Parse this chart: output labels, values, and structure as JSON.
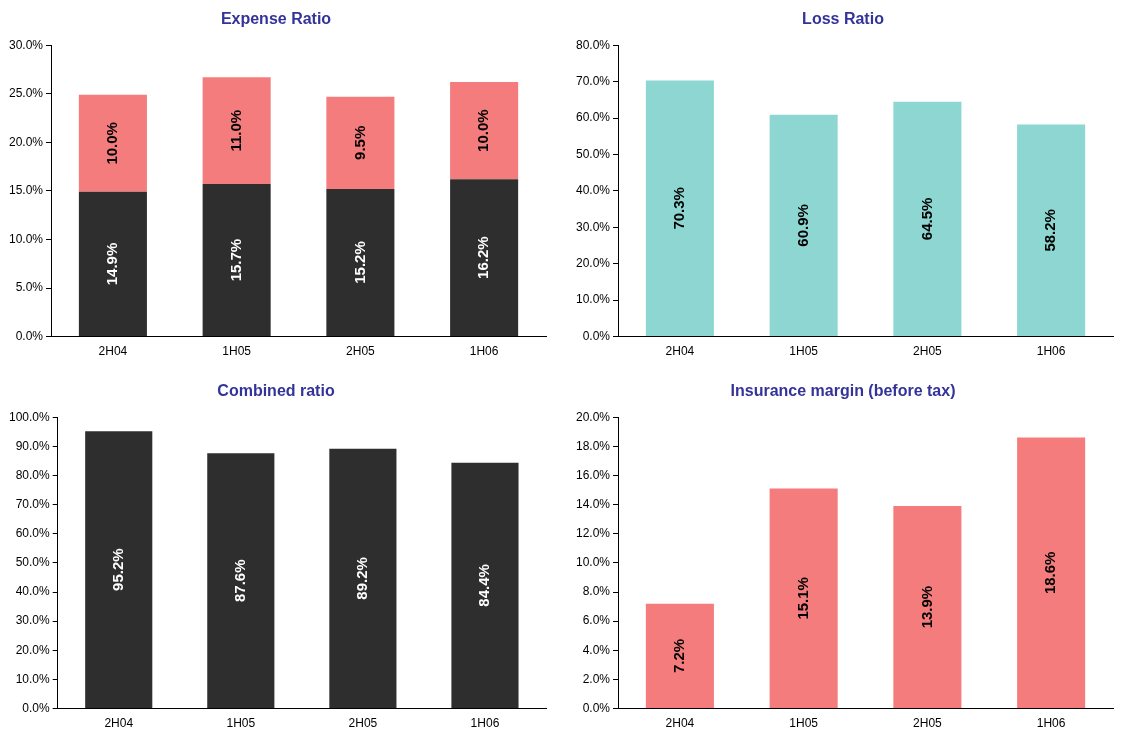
{
  "chart_data": [
    {
      "type": "bar",
      "title": "Expense Ratio",
      "categories": [
        "2H04",
        "1H05",
        "2H05",
        "1H06"
      ],
      "stacked": true,
      "series": [
        {
          "color": "#2e2e2e",
          "values": [
            14.9,
            15.7,
            15.2,
            16.2
          ],
          "value_labels": [
            "14.9%",
            "15.7%",
            "15.2%",
            "16.2%"
          ]
        },
        {
          "color": "#f47c7c",
          "values": [
            10.0,
            11.0,
            9.5,
            10.0
          ],
          "value_labels": [
            "10.0%",
            "11.0%",
            "9.5%",
            "10.0%"
          ]
        }
      ],
      "ylim": [
        0,
        30
      ],
      "yticks": [
        {
          "value": 0,
          "label": "0.0%"
        },
        {
          "value": 5,
          "label": "5.0%"
        },
        {
          "value": 10,
          "label": "10.0%"
        },
        {
          "value": 15,
          "label": "15.0%"
        },
        {
          "value": 20,
          "label": "20.0%"
        },
        {
          "value": 25,
          "label": "25.0%"
        },
        {
          "value": 30,
          "label": "30.0%"
        }
      ]
    },
    {
      "type": "bar",
      "title": "Loss Ratio",
      "categories": [
        "2H04",
        "1H05",
        "2H05",
        "1H06"
      ],
      "series": [
        {
          "color": "#8ed6d2",
          "values": [
            70.3,
            60.9,
            64.5,
            58.2
          ],
          "value_labels": [
            "70.3%",
            "60.9%",
            "64.5%",
            "58.2%"
          ]
        }
      ],
      "ylim": [
        0,
        80
      ],
      "yticks": [
        {
          "value": 0,
          "label": "0.0%"
        },
        {
          "value": 10,
          "label": "10.0%"
        },
        {
          "value": 20,
          "label": "20.0%"
        },
        {
          "value": 30,
          "label": "30.0%"
        },
        {
          "value": 40,
          "label": "40.0%"
        },
        {
          "value": 50,
          "label": "50.0%"
        },
        {
          "value": 60,
          "label": "60.0%"
        },
        {
          "value": 70,
          "label": "70.0%"
        },
        {
          "value": 80,
          "label": "80.0%"
        }
      ]
    },
    {
      "type": "bar",
      "title": "Combined ratio",
      "categories": [
        "2H04",
        "1H05",
        "2H05",
        "1H06"
      ],
      "series": [
        {
          "color": "#2e2e2e",
          "values": [
            95.2,
            87.6,
            89.2,
            84.4
          ],
          "value_labels": [
            "95.2%",
            "87.6%",
            "89.2%",
            "84.4%"
          ]
        }
      ],
      "ylim": [
        0,
        100
      ],
      "yticks": [
        {
          "value": 0,
          "label": "0.0%"
        },
        {
          "value": 10,
          "label": "10.0%"
        },
        {
          "value": 20,
          "label": "20.0%"
        },
        {
          "value": 30,
          "label": "30.0%"
        },
        {
          "value": 40,
          "label": "40.0%"
        },
        {
          "value": 50,
          "label": "50.0%"
        },
        {
          "value": 60,
          "label": "60.0%"
        },
        {
          "value": 70,
          "label": "70.0%"
        },
        {
          "value": 80,
          "label": "80.0%"
        },
        {
          "value": 90,
          "label": "90.0%"
        },
        {
          "value": 100,
          "label": "100.0%"
        }
      ]
    },
    {
      "type": "bar",
      "title": "Insurance margin (before tax)",
      "categories": [
        "2H04",
        "1H05",
        "2H05",
        "1H06"
      ],
      "series": [
        {
          "color": "#f47c7c",
          "values": [
            7.2,
            15.1,
            13.9,
            18.6
          ],
          "value_labels": [
            "7.2%",
            "15.1%",
            "13.9%",
            "18.6%"
          ]
        }
      ],
      "ylim": [
        0,
        20
      ],
      "yticks": [
        {
          "value": 0,
          "label": "0.0%"
        },
        {
          "value": 2,
          "label": "2.0%"
        },
        {
          "value": 4,
          "label": "4.0%"
        },
        {
          "value": 6,
          "label": "6.0%"
        },
        {
          "value": 8,
          "label": "8.0%"
        },
        {
          "value": 10,
          "label": "10.0%"
        },
        {
          "value": 12,
          "label": "12.0%"
        },
        {
          "value": 14,
          "label": "14.0%"
        },
        {
          "value": 16,
          "label": "16.0%"
        },
        {
          "value": 18,
          "label": "18.0%"
        },
        {
          "value": 20,
          "label": "20.0%"
        }
      ]
    }
  ]
}
